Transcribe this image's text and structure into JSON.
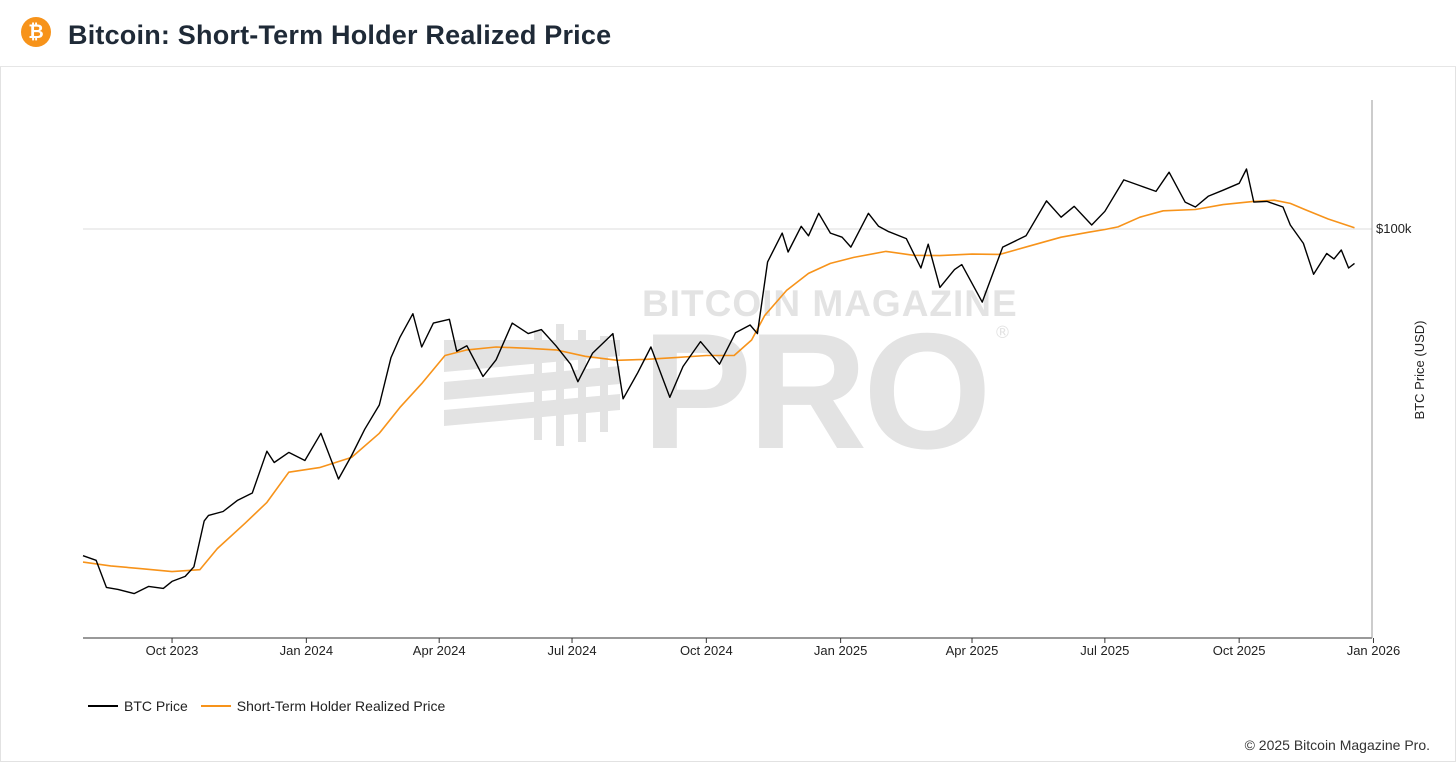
{
  "header": {
    "logo_glyph": "₿",
    "logo_icon": "bitcoin-icon",
    "logo_color": "#f7931a",
    "title": "Bitcoin: Short-Term Holder Realized Price"
  },
  "watermark": {
    "line1": "BITCOIN MAGAZINE",
    "line2": "PRO",
    "mark": "®"
  },
  "footer": {
    "copyright": "© 2025 Bitcoin Magazine Pro."
  },
  "chart_data": {
    "type": "line",
    "title": "Bitcoin: Short-Term Holder Realized Price",
    "ylabel": "BTC Price (USD)",
    "y_scale": "log",
    "y_tick_labels": [
      "$100k"
    ],
    "y_tick_values": [
      100000
    ],
    "x_tick_labels": [
      "Oct 2023",
      "Jan 2024",
      "Apr 2024",
      "Jul 2024",
      "Oct 2024",
      "Jan 2025",
      "Apr 2025",
      "Jul 2025",
      "Oct 2025",
      "Jan 2026"
    ],
    "x_tick_dates": [
      "2023-10-01",
      "2024-01-01",
      "2024-04-01",
      "2024-07-01",
      "2024-10-01",
      "2025-01-01",
      "2025-04-01",
      "2025-07-01",
      "2025-10-01",
      "2026-01-01"
    ],
    "legend_position": "bottom-left",
    "series": [
      {
        "name": "BTC Price",
        "color": "#000000",
        "x": [
          "2023-08-01",
          "2023-08-10",
          "2023-08-17",
          "2023-08-25",
          "2023-09-05",
          "2023-09-15",
          "2023-09-25",
          "2023-10-01",
          "2023-10-10",
          "2023-10-16",
          "2023-10-23",
          "2023-10-26",
          "2023-11-05",
          "2023-11-15",
          "2023-11-25",
          "2023-12-05",
          "2023-12-10",
          "2023-12-20",
          "2023-12-31",
          "2024-01-11",
          "2024-01-23",
          "2024-02-01",
          "2024-02-10",
          "2024-02-20",
          "2024-02-28",
          "2024-03-05",
          "2024-03-14",
          "2024-03-20",
          "2024-03-28",
          "2024-04-08",
          "2024-04-13",
          "2024-04-20",
          "2024-05-01",
          "2024-05-10",
          "2024-05-21",
          "2024-06-01",
          "2024-06-10",
          "2024-06-20",
          "2024-06-30",
          "2024-07-05",
          "2024-07-15",
          "2024-07-29",
          "2024-08-05",
          "2024-08-15",
          "2024-08-24",
          "2024-09-06",
          "2024-09-15",
          "2024-09-27",
          "2024-10-10",
          "2024-10-21",
          "2024-10-31",
          "2024-11-05",
          "2024-11-12",
          "2024-11-22",
          "2024-11-26",
          "2024-12-05",
          "2024-12-10",
          "2024-12-17",
          "2024-12-25",
          "2025-01-02",
          "2025-01-08",
          "2025-01-20",
          "2025-01-27",
          "2025-02-03",
          "2025-02-15",
          "2025-02-25",
          "2025-03-02",
          "2025-03-10",
          "2025-03-20",
          "2025-03-25",
          "2025-04-08",
          "2025-04-22",
          "2025-05-08",
          "2025-05-22",
          "2025-06-01",
          "2025-06-10",
          "2025-06-22",
          "2025-07-01",
          "2025-07-14",
          "2025-07-25",
          "2025-08-05",
          "2025-08-14",
          "2025-08-25",
          "2025-09-01",
          "2025-09-10",
          "2025-09-20",
          "2025-10-01",
          "2025-10-06",
          "2025-10-11",
          "2025-10-20",
          "2025-10-31",
          "2025-11-05",
          "2025-11-14",
          "2025-11-21",
          "2025-11-30",
          "2025-12-05",
          "2025-12-10",
          "2025-12-15",
          "2025-12-19"
        ],
        "values": [
          29700,
          29200,
          26400,
          26200,
          25800,
          26500,
          26300,
          27000,
          27500,
          28500,
          33800,
          34500,
          35000,
          36500,
          37500,
          43800,
          42000,
          43600,
          42300,
          46800,
          39500,
          43100,
          47500,
          52000,
          62000,
          66800,
          73000,
          64500,
          70500,
          71500,
          63500,
          64800,
          57800,
          61500,
          70500,
          67800,
          68800,
          64800,
          60500,
          56700,
          63000,
          67800,
          53200,
          58600,
          64500,
          53500,
          60000,
          65800,
          60500,
          68000,
          70000,
          67800,
          88500,
          98500,
          91800,
          101000,
          97500,
          106000,
          98500,
          97000,
          93500,
          106000,
          101000,
          99000,
          96500,
          86500,
          94500,
          80500,
          86000,
          87600,
          76200,
          93500,
          97500,
          111000,
          104500,
          108800,
          101500,
          106800,
          120000,
          117500,
          115000,
          123500,
          110500,
          108500,
          113000,
          115500,
          118500,
          125000,
          110500,
          110800,
          108500,
          101500,
          94800,
          84500,
          91300,
          89500,
          92500,
          86500,
          88000
        ]
      },
      {
        "name": "Short-Term Holder Realized Price",
        "color": "#f7931a",
        "x": [
          "2023-08-01",
          "2023-08-20",
          "2023-09-10",
          "2023-10-01",
          "2023-10-20",
          "2023-11-01",
          "2023-11-20",
          "2023-12-05",
          "2023-12-20",
          "2024-01-10",
          "2024-02-01",
          "2024-02-20",
          "2024-03-05",
          "2024-03-20",
          "2024-04-05",
          "2024-04-20",
          "2024-05-10",
          "2024-06-01",
          "2024-06-20",
          "2024-07-10",
          "2024-08-01",
          "2024-08-20",
          "2024-09-10",
          "2024-10-01",
          "2024-10-20",
          "2024-11-01",
          "2024-11-10",
          "2024-11-25",
          "2024-12-10",
          "2024-12-25",
          "2025-01-10",
          "2025-02-01",
          "2025-02-20",
          "2025-03-10",
          "2025-04-01",
          "2025-04-20",
          "2025-05-10",
          "2025-06-01",
          "2025-06-20",
          "2025-07-01",
          "2025-07-10",
          "2025-07-25",
          "2025-08-10",
          "2025-09-01",
          "2025-09-20",
          "2025-10-10",
          "2025-10-25",
          "2025-11-05",
          "2025-11-15",
          "2025-12-01",
          "2025-12-19"
        ],
        "values": [
          29000,
          28600,
          28300,
          28000,
          28200,
          30500,
          33500,
          36200,
          40500,
          41200,
          42800,
          46800,
          51500,
          56300,
          62500,
          63800,
          64500,
          64200,
          63800,
          62300,
          61400,
          61600,
          62000,
          62500,
          62500,
          66200,
          72500,
          79600,
          84800,
          88000,
          90000,
          92000,
          90700,
          90600,
          91100,
          91000,
          93800,
          97000,
          98800,
          99800,
          100800,
          104500,
          107000,
          107500,
          109500,
          110700,
          111300,
          110000,
          107500,
          103800,
          100500
        ]
      }
    ]
  }
}
